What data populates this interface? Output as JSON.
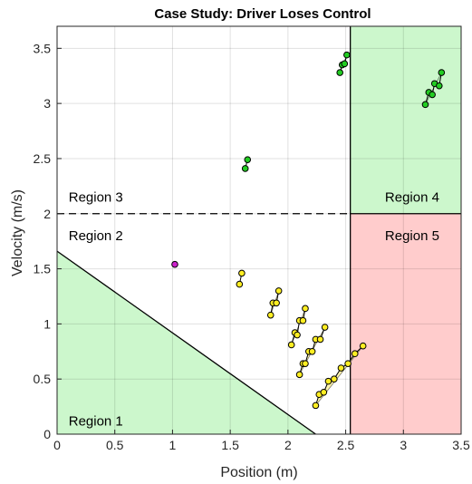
{
  "chart_data": {
    "type": "scatter",
    "title": "Case Study: Driver Loses Control",
    "xlabel": "Position (m)",
    "ylabel": "Velocity (m/s)",
    "xlim": [
      0,
      3.5
    ],
    "ylim": [
      0,
      3.7
    ],
    "xticks": [
      0,
      0.5,
      1,
      1.5,
      2,
      2.5,
      3,
      3.5
    ],
    "xtick_labels": [
      "0",
      "0.5",
      "1",
      "1.5",
      "2",
      "2.5",
      "3",
      "3.5"
    ],
    "yticks": [
      0,
      0.5,
      1,
      1.5,
      2,
      2.5,
      3,
      3.5
    ],
    "ytick_labels": [
      "0",
      "0.5",
      "1",
      "1.5",
      "2",
      "2.5",
      "3",
      "3.5"
    ],
    "grid": true,
    "threshold_velocity": 2.0,
    "threshold_position": 2.54,
    "regions": [
      {
        "label": "Region 1",
        "color": "#ccf7cc",
        "vertices": [
          [
            0,
            0
          ],
          [
            2.24,
            0
          ],
          [
            0,
            1.66
          ]
        ],
        "label_at": [
          0.1,
          0.12
        ]
      },
      {
        "label": "Region 2",
        "label_at": [
          0.1,
          1.8
        ]
      },
      {
        "label": "Region 3",
        "label_at": [
          0.1,
          2.15
        ]
      },
      {
        "label": "Region 4",
        "color": "#ccf7cc",
        "vertices": [
          [
            2.54,
            2.0
          ],
          [
            3.5,
            2.0
          ],
          [
            3.5,
            3.7
          ],
          [
            2.54,
            3.7
          ]
        ],
        "label_at": [
          2.84,
          2.15
        ]
      },
      {
        "label": "Region 5",
        "color": "#ffcccc",
        "vertices": [
          [
            2.54,
            0
          ],
          [
            3.5,
            0
          ],
          [
            3.5,
            2.0
          ],
          [
            2.54,
            2.0
          ]
        ],
        "label_at": [
          2.84,
          1.8
        ]
      }
    ],
    "boundary_line": [
      [
        0,
        1.66
      ],
      [
        2.24,
        0
      ]
    ],
    "colors": {
      "green_points": "#22cc22",
      "yellow_points": "#ffee22",
      "magenta_point": "#cc22cc",
      "yellow_fill": "#fff6b0",
      "green_fill": "#bdf5bd",
      "dashed_line": "#000000"
    },
    "green_clusters": [
      {
        "points": [
          [
            1.63,
            2.41
          ],
          [
            1.65,
            2.49
          ]
        ]
      },
      {
        "points": [
          [
            2.45,
            3.28
          ],
          [
            2.47,
            3.35
          ],
          [
            2.49,
            3.36
          ],
          [
            2.51,
            3.44
          ]
        ]
      },
      {
        "points": [
          [
            3.19,
            2.99
          ],
          [
            3.22,
            3.1
          ],
          [
            3.25,
            3.08
          ],
          [
            3.27,
            3.18
          ],
          [
            3.31,
            3.16
          ],
          [
            3.33,
            3.28
          ]
        ]
      }
    ],
    "magenta_points": [
      [
        1.02,
        1.54
      ]
    ],
    "yellow_clusters": [
      {
        "points": [
          [
            1.58,
            1.36
          ],
          [
            1.6,
            1.46
          ]
        ]
      },
      {
        "points": [
          [
            1.85,
            1.08
          ],
          [
            1.87,
            1.19
          ],
          [
            1.9,
            1.19
          ],
          [
            1.92,
            1.3
          ]
        ]
      },
      {
        "points": [
          [
            2.03,
            0.81
          ],
          [
            2.06,
            0.92
          ],
          [
            2.08,
            0.9
          ],
          [
            2.1,
            1.03
          ],
          [
            2.13,
            1.03
          ],
          [
            2.15,
            1.14
          ]
        ]
      },
      {
        "points": [
          [
            2.1,
            0.54
          ],
          [
            2.13,
            0.64
          ],
          [
            2.15,
            0.64
          ],
          [
            2.18,
            0.75
          ],
          [
            2.21,
            0.75
          ],
          [
            2.24,
            0.86
          ],
          [
            2.28,
            0.86
          ],
          [
            2.32,
            0.97
          ]
        ]
      },
      {
        "points": [
          [
            2.24,
            0.26
          ],
          [
            2.27,
            0.36
          ],
          [
            2.31,
            0.38
          ],
          [
            2.35,
            0.48
          ],
          [
            2.4,
            0.5
          ],
          [
            2.46,
            0.6
          ],
          [
            2.52,
            0.64
          ],
          [
            2.58,
            0.73
          ],
          [
            2.65,
            0.8
          ]
        ]
      }
    ]
  }
}
